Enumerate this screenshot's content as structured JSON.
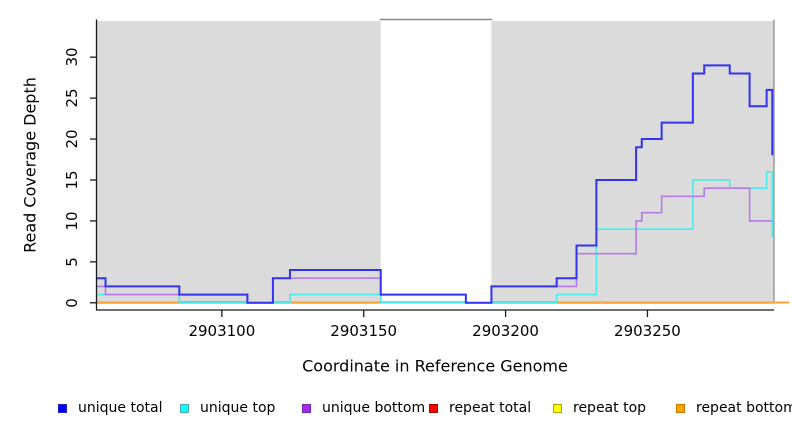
{
  "chart_data": {
    "type": "line",
    "subtype": "step-coverage",
    "title": "",
    "xlabel": "Coordinate in Reference Genome",
    "ylabel": "Read Coverage Depth",
    "xlim": [
      2903056,
      2903294.6
    ],
    "ylim": [
      -0.88,
      34.6
    ],
    "xticks": [
      "2903100",
      "2903150",
      "2903200",
      "2903250"
    ],
    "xtick_values": [
      2903100,
      2903150,
      2903200,
      2903250
    ],
    "yticks": [
      "0",
      "5",
      "10",
      "15",
      "20",
      "25",
      "30"
    ],
    "ytick_values": [
      0,
      5,
      10,
      15,
      20,
      25,
      30
    ],
    "grid": false,
    "plot_bg": "#ffffff",
    "shaded_regions": [
      {
        "name": "left-gray-block",
        "x1": 2903056,
        "x2": 2903156,
        "color": "#dbdbdb"
      },
      {
        "name": "right-gray-block",
        "x1": 2903195,
        "x2": 2903294.6,
        "color": "#dbdbdb"
      }
    ],
    "white_gap_region": {
      "x1": 2903156,
      "x2": 2903195
    },
    "series": [
      {
        "name": "unique total",
        "color": "#3333f0",
        "width": 2,
        "steps": [
          [
            2903056,
            3
          ],
          [
            2903059,
            2
          ],
          [
            2903085,
            1
          ],
          [
            2903109,
            0
          ],
          [
            2903118,
            3
          ],
          [
            2903124,
            4
          ],
          [
            2903156,
            1
          ],
          [
            2903186,
            0
          ],
          [
            2903195,
            2
          ],
          [
            2903218,
            3
          ],
          [
            2903225,
            7
          ],
          [
            2903232,
            15
          ],
          [
            2903246,
            19
          ],
          [
            2903248,
            20
          ],
          [
            2903255,
            22
          ],
          [
            2903266,
            28
          ],
          [
            2903270,
            29
          ],
          [
            2903279,
            28
          ],
          [
            2903286,
            24
          ],
          [
            2903292,
            26
          ],
          [
            2903294,
            18
          ]
        ]
      },
      {
        "name": "unique top",
        "color": "#4fe9e9",
        "width": 1.6,
        "steps": [
          [
            2903056,
            1
          ],
          [
            2903085,
            0
          ],
          [
            2903124,
            1
          ],
          [
            2903156,
            0
          ],
          [
            2903218,
            1
          ],
          [
            2903232,
            9
          ],
          [
            2903266,
            15
          ],
          [
            2903279,
            14
          ],
          [
            2903292,
            16
          ],
          [
            2903294,
            8
          ]
        ]
      },
      {
        "name": "unique bottom",
        "color": "#b57be8",
        "width": 1.6,
        "steps": [
          [
            2903056,
            2
          ],
          [
            2903059,
            1
          ],
          [
            2903109,
            0
          ],
          [
            2903118,
            3
          ],
          [
            2903156,
            1
          ],
          [
            2903186,
            0
          ],
          [
            2903195,
            2
          ],
          [
            2903225,
            6
          ],
          [
            2903246,
            10
          ],
          [
            2903248,
            11
          ],
          [
            2903255,
            13
          ],
          [
            2903270,
            14
          ],
          [
            2903286,
            10
          ],
          [
            2903294,
            10
          ]
        ]
      },
      {
        "name": "repeat total",
        "color": "#ee0000",
        "width": 1.5,
        "steps": [
          [
            2903056,
            0
          ],
          [
            2903294,
            0
          ]
        ]
      },
      {
        "name": "repeat top",
        "color": "#ffff00",
        "width": 1.5,
        "steps": [
          [
            2903056,
            0
          ],
          [
            2903294,
            0
          ]
        ]
      },
      {
        "name": "repeat bottom",
        "color": "#ffa033",
        "width": 2,
        "steps": [
          [
            2903056,
            0
          ],
          [
            2903294,
            0
          ]
        ]
      }
    ],
    "baseline_segments": [
      {
        "x1": 2903056,
        "x2": 2903085,
        "color": "#ffa033"
      },
      {
        "x1": 2903085,
        "x2": 2903109,
        "color": "#d05c7c"
      },
      {
        "x1": 2903118,
        "x2": 2903124,
        "color": "#55be5e"
      },
      {
        "x1": 2903124,
        "x2": 2903156,
        "color": "#ffa033"
      },
      {
        "x1": 2903156,
        "x2": 2903186,
        "color": "#d05c7c"
      },
      {
        "x1": 2903195,
        "x2": 2903218,
        "color": "#55be5e"
      },
      {
        "x1": 2903218,
        "x2": 2903300,
        "color": "#ffa033"
      }
    ],
    "legend": [
      {
        "label": "unique total",
        "color": "#0000f5",
        "border": "#2222cc"
      },
      {
        "label": "unique top",
        "color": "#00ffff",
        "border": "#55a9a9"
      },
      {
        "label": "unique bottom",
        "color": "#a12beb",
        "border": "#7a26af"
      },
      {
        "label": "repeat total",
        "color": "#ff0000",
        "border": "#aa0000"
      },
      {
        "label": "repeat top",
        "color": "#ffff00",
        "border": "#a8a800"
      },
      {
        "label": "repeat bottom",
        "color": "#ffa500",
        "border": "#c07800"
      }
    ],
    "axis_color": "#1a1a1a",
    "box_color": "#8a8a8a"
  }
}
